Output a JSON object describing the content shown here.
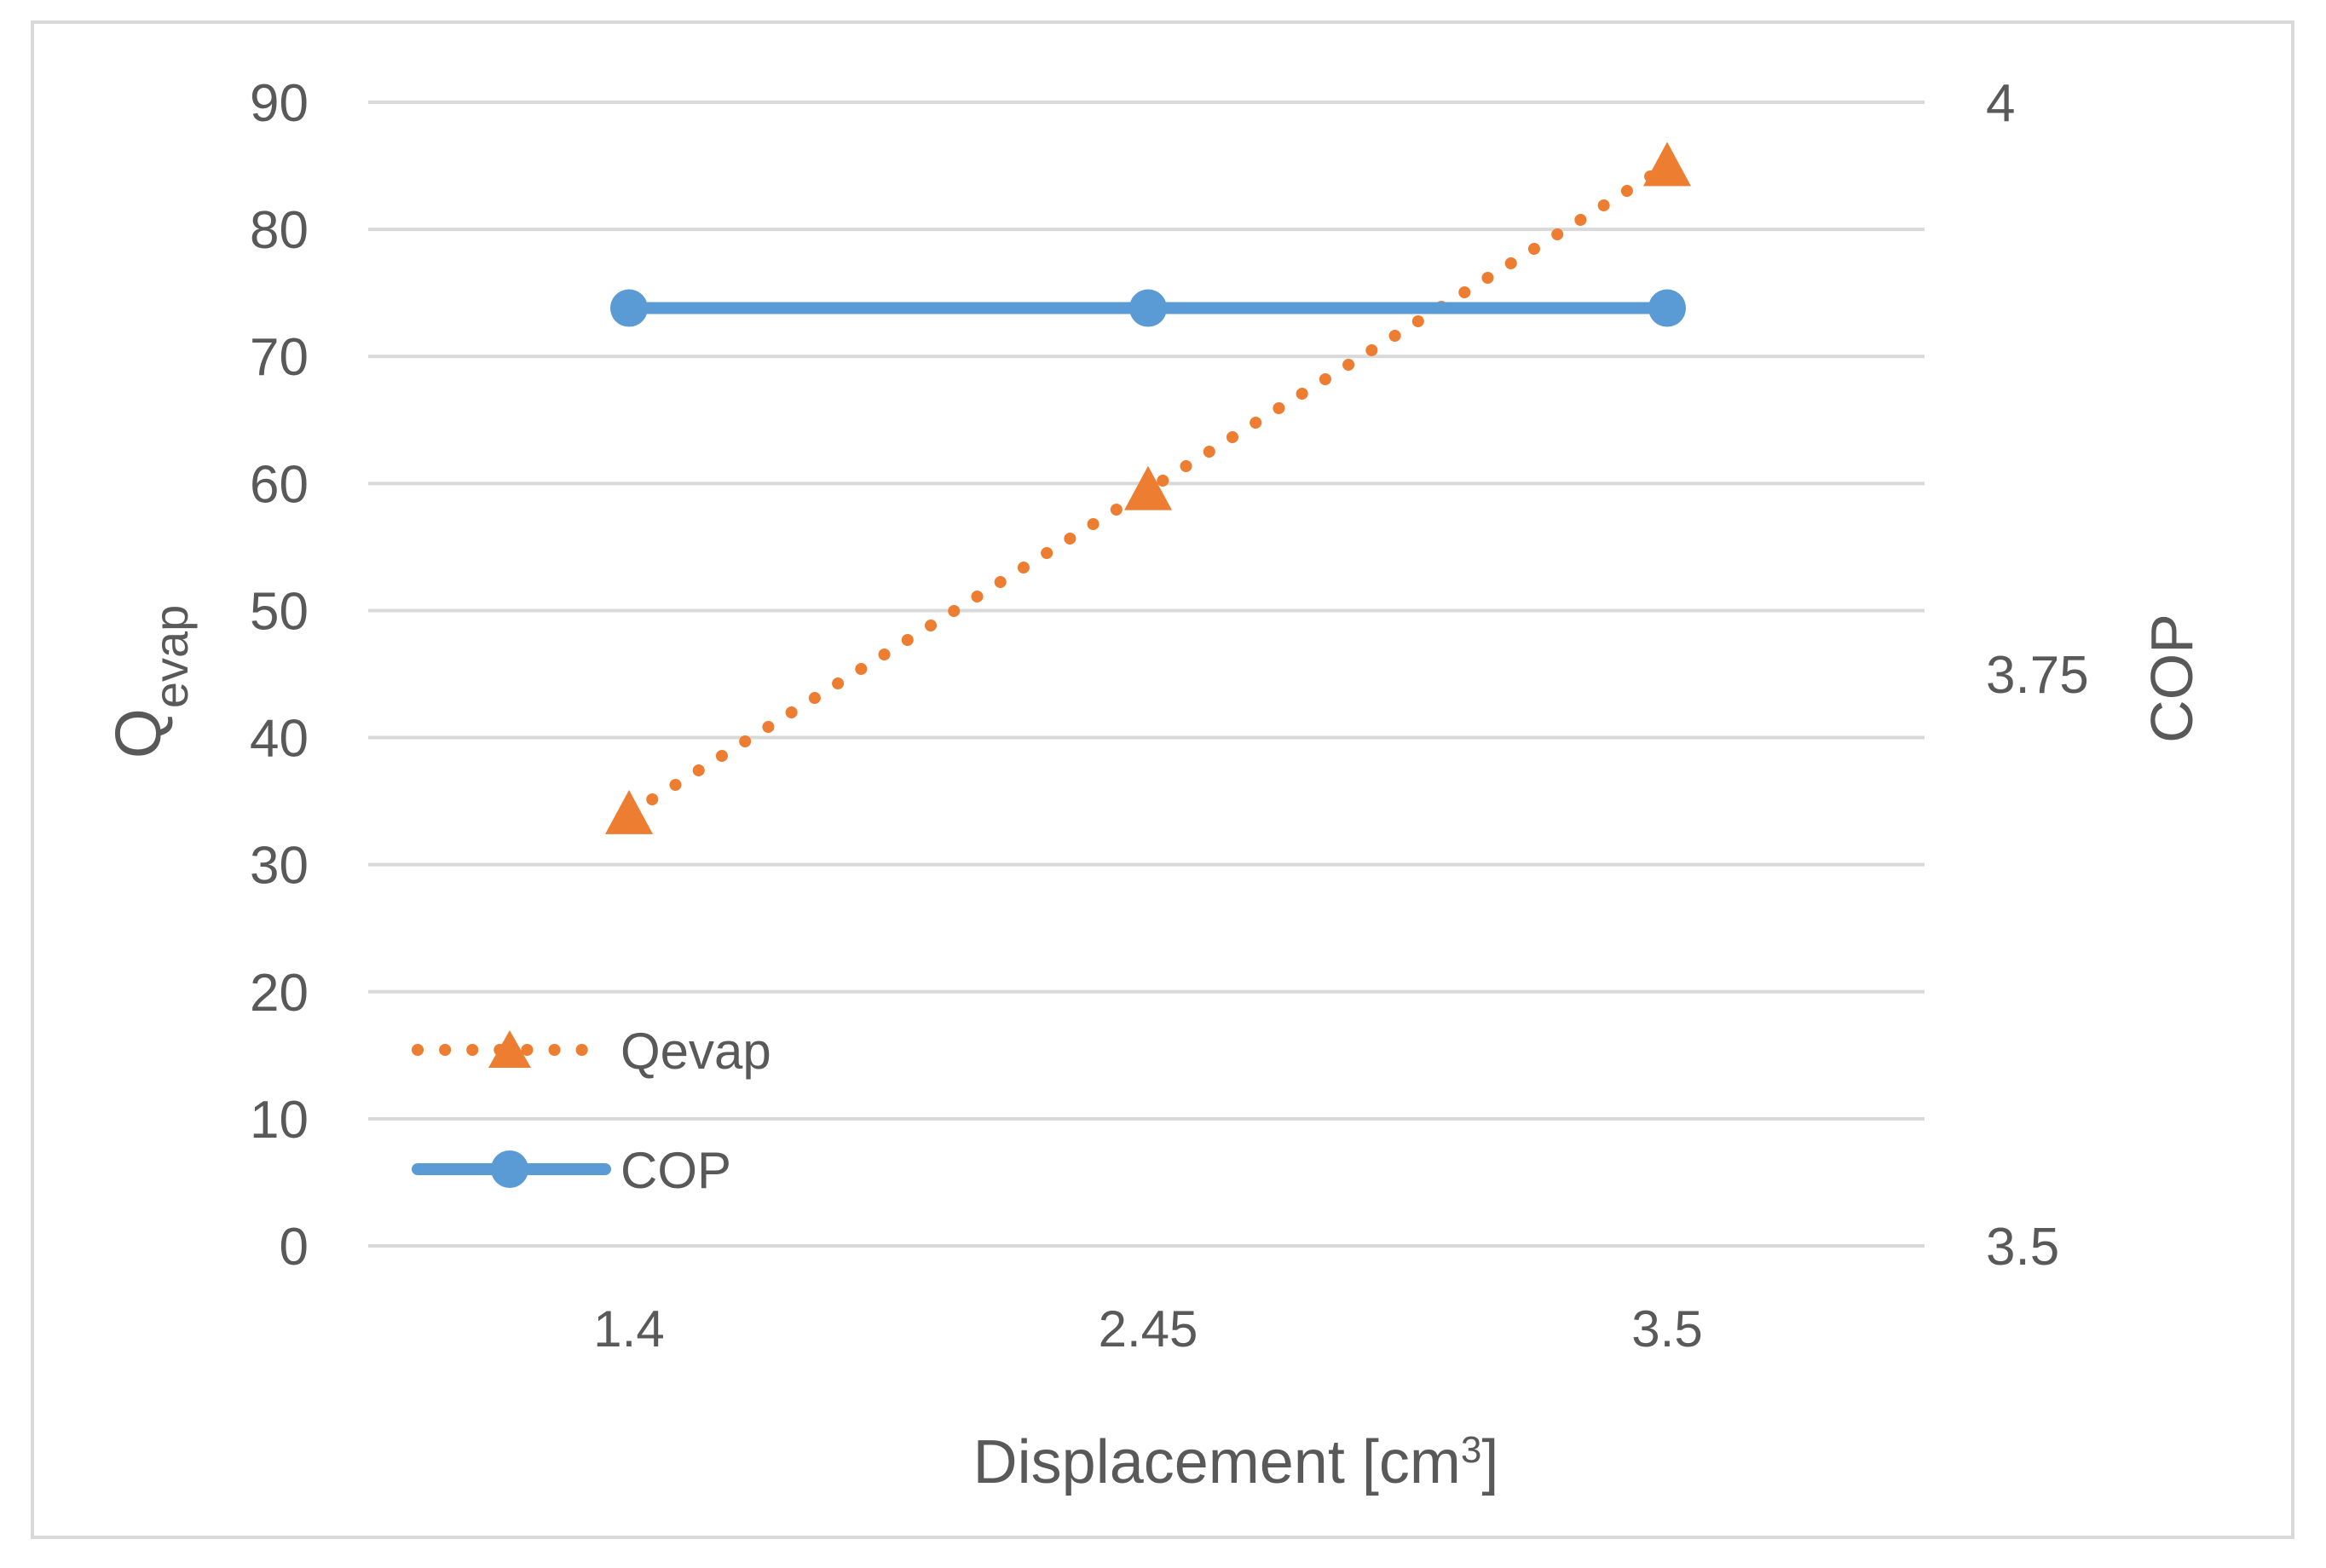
{
  "chart_data": {
    "type": "line",
    "title": "",
    "xlabel": "Displacement [cm",
    "xlabel_sup": "3",
    "xlabel_suffix": "]",
    "ylabel_main": "Q",
    "ylabel_sub": "evap",
    "y2label": "COP",
    "categories": [
      "1.4",
      "2.45",
      "3.5"
    ],
    "y_ticks": [
      "0",
      "10",
      "20",
      "30",
      "40",
      "50",
      "60",
      "70",
      "80",
      "90"
    ],
    "ylim": [
      0,
      90
    ],
    "y2_ticks": [
      "3.5",
      "3.75",
      "4"
    ],
    "y2lim": [
      3.5,
      4.0
    ],
    "grid": true,
    "legend_position": "bottom-left",
    "series": [
      {
        "name": "Qevap",
        "axis": "left",
        "values": [
          34,
          59.5,
          85
        ],
        "color": "#ed7d31",
        "style": "dotted",
        "marker": "triangle"
      },
      {
        "name": "COP",
        "axis": "right",
        "values": [
          3.91,
          3.91,
          3.91
        ],
        "color": "#5b9bd5",
        "style": "solid",
        "marker": "circle"
      }
    ],
    "colors": {
      "grid": "#d9d9d9",
      "text": "#595959",
      "border": "#d9d9d9"
    }
  }
}
